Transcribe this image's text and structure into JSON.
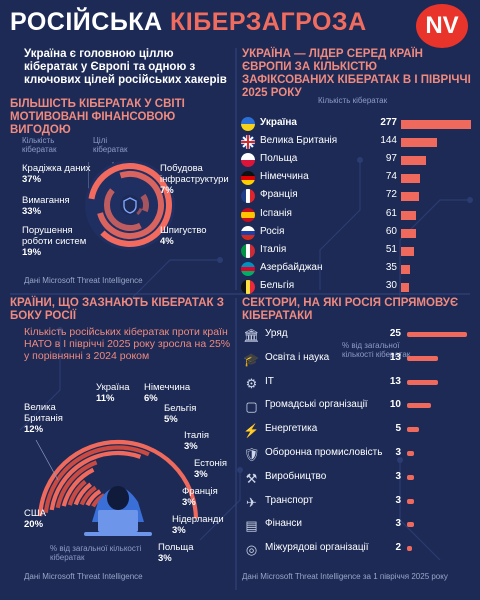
{
  "header": {
    "title_part1": "РОСІЙСЬКА ",
    "title_part2": "КІБЕРЗАГРОЗА",
    "logo": "NV"
  },
  "intro_text": "Україна є головною ціллю кібератак у Європі та одною з ключових цілей російських хакерів",
  "motives": {
    "heading": "БІЛЬШІСТЬ КІБЕРАТАК У СВІТІ МОТИВОВАНІ ФІНАНСОВОЮ ВИГОДОЮ",
    "hint_count": "Кількість кібератак",
    "hint_targets": "Цілі кібератак",
    "source": "Дані Microsoft Threat Intelligence",
    "center_icon": "shield-lock-icon"
  },
  "countries": {
    "heading": "УКРАЇНА — ЛІДЕР СЕРЕД КРАЇН ЄВРОПИ ЗА КІЛЬКІСТЮ ЗАФІКСОВАНИХ КІБЕРАТАК В І ПІВРІЧЧІ 2025 РОКУ",
    "axis_label": "Кількість кібератак"
  },
  "russia": {
    "heading": "КРАЇНИ, ЩО ЗАЗНАЮТЬ КІБЕРАТАК З БОКУ РОСІЇ",
    "subtitle": "Кількість російських кібератак проти країн НАТО в І півріччі 2025 року зросла на 25% у порівнянні з 2024 роком",
    "hint": "% від загальної кількості кібератак",
    "source": "Дані Microsoft Threat Intelligence",
    "center_icon": "hooded-hacker-icon"
  },
  "sectors": {
    "heading": "СЕКТОРИ, НА ЯКІ РОСІЯ СПРЯМОВУЄ КІБЕРАТАКИ",
    "hint": "% від загальної кількості кібератак",
    "source": "Дані Microsoft Threat Intelligence за 1 півріччя 2025 року"
  },
  "chart_data": [
    {
      "type": "pie",
      "variant": "radial-bar",
      "categories": [
        "Крадіжка даних",
        "Вимагання",
        "Порушення роботи систем",
        "Побудова інфраструктури",
        "Шпигуство"
      ],
      "values": [
        37,
        33,
        19,
        7,
        4
      ],
      "unit": "%",
      "colors": [
        "#f26b5e",
        "#f26b5e",
        "#f26b5e",
        "#f26b5e",
        "#f26b5e"
      ]
    },
    {
      "type": "bar",
      "orientation": "horizontal",
      "categories": [
        "Україна",
        "Велика Британія",
        "Польща",
        "Німеччина",
        "Франція",
        "Іспанія",
        "Росія",
        "Італія",
        "Азербайджан",
        "Бельгія"
      ],
      "values": [
        277,
        144,
        97,
        74,
        72,
        61,
        60,
        51,
        35,
        30
      ],
      "flags": [
        "ua",
        "gb",
        "pl",
        "de",
        "fr",
        "es",
        "ru",
        "it",
        "az",
        "be"
      ],
      "xlim": [
        0,
        277
      ]
    },
    {
      "type": "pie",
      "variant": "semicircle-radial-bar",
      "categories": [
        "США",
        "Велика Британія",
        "Україна",
        "Німеччина",
        "Бельгія",
        "Італія",
        "Естонія",
        "Франція",
        "Нідерланди",
        "Польща"
      ],
      "values": [
        20,
        12,
        11,
        6,
        5,
        3,
        3,
        3,
        3,
        3
      ],
      "unit": "%"
    },
    {
      "type": "bar",
      "orientation": "horizontal",
      "categories": [
        "Уряд",
        "Освіта і наука",
        "IT",
        "Громадські організації",
        "Енергетика",
        "Оборонна промисловість",
        "Виробництво",
        "Транспорт",
        "Фінанси",
        "Міжурядові організації"
      ],
      "values": [
        25,
        13,
        13,
        10,
        5,
        3,
        3,
        3,
        3,
        2
      ],
      "icons": [
        "government-icon",
        "graduation-cap-icon",
        "it-icon",
        "ngo-icon",
        "energy-icon",
        "shield-icon",
        "factory-icon",
        "transport-icon",
        "finance-icon",
        "intergovernmental-icon"
      ],
      "unit": "%",
      "xlim": [
        0,
        25
      ]
    }
  ]
}
